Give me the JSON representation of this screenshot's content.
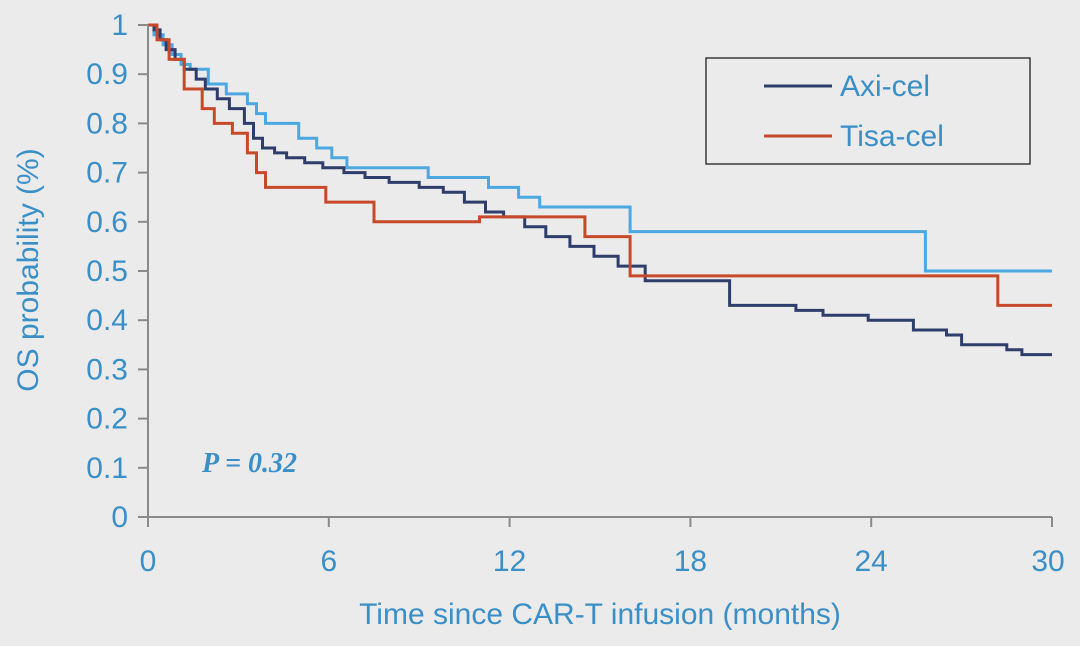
{
  "chart_data": {
    "type": "line",
    "step": true,
    "xlabel": "Time since CAR-T infusion (months)",
    "ylabel": "OS probability (%)",
    "xlim": [
      0,
      30
    ],
    "ylim": [
      0,
      1
    ],
    "xticks": [
      0,
      6,
      12,
      18,
      24,
      30
    ],
    "yticks": [
      0,
      0.1,
      0.2,
      0.3,
      0.4,
      0.5,
      0.6,
      0.7,
      0.8,
      0.9,
      1
    ],
    "ytick_labels": [
      "0",
      "0.1",
      "0.2",
      "0.3",
      "0.4",
      "0.5",
      "0.6",
      "0.7",
      "0.8",
      "0.9",
      "1"
    ],
    "grid": false,
    "legend_position": "top-right",
    "annotation": "P = 0.32",
    "colors": {
      "axis_text": "#3a8fc7",
      "axis_line": "#8a8a8a",
      "background": "#ebebeb",
      "legend_border": "#3a3a3a",
      "legend_text": "#3a8fc7"
    },
    "series": [
      {
        "name": "",
        "color": "#4ba8e0",
        "x": [
          0,
          0.2,
          0.5,
          0.8,
          1.1,
          1.4,
          2.0,
          2.6,
          3.3,
          3.6,
          3.9,
          5.0,
          5.6,
          6.1,
          6.6,
          9.3,
          11.3,
          12.3,
          13.0,
          16.0,
          25.8,
          30
        ],
        "y": [
          1.0,
          0.98,
          0.96,
          0.94,
          0.92,
          0.91,
          0.88,
          0.86,
          0.84,
          0.82,
          0.8,
          0.77,
          0.75,
          0.73,
          0.71,
          0.69,
          0.67,
          0.65,
          0.63,
          0.58,
          0.5,
          0.5
        ]
      },
      {
        "name": "Axi-cel",
        "color": "#2e3d6b",
        "x": [
          0,
          0.2,
          0.4,
          0.6,
          0.9,
          1.2,
          1.6,
          1.9,
          2.3,
          2.7,
          3.2,
          3.5,
          3.8,
          4.2,
          4.6,
          5.2,
          5.8,
          6.5,
          7.2,
          8.0,
          9.0,
          9.8,
          10.5,
          11.2,
          11.8,
          12.5,
          13.2,
          14.0,
          14.8,
          15.6,
          16.5,
          19.3,
          21.5,
          22.4,
          23.9,
          25.4,
          26.5,
          27.0,
          28.5,
          29.0,
          30
        ],
        "y": [
          1.0,
          0.99,
          0.97,
          0.95,
          0.93,
          0.91,
          0.89,
          0.87,
          0.85,
          0.83,
          0.8,
          0.77,
          0.75,
          0.74,
          0.73,
          0.72,
          0.71,
          0.7,
          0.69,
          0.68,
          0.67,
          0.66,
          0.64,
          0.62,
          0.61,
          0.59,
          0.57,
          0.55,
          0.53,
          0.51,
          0.48,
          0.43,
          0.42,
          0.41,
          0.4,
          0.38,
          0.37,
          0.35,
          0.34,
          0.33,
          0.33
        ]
      },
      {
        "name": "Tisa-cel",
        "color": "#c8492a",
        "x": [
          0,
          0.3,
          0.7,
          1.2,
          1.8,
          2.2,
          2.8,
          3.3,
          3.6,
          3.9,
          5.9,
          7.5,
          11.0,
          14.5,
          16.0,
          28.2,
          30
        ],
        "y": [
          1.0,
          0.97,
          0.93,
          0.87,
          0.83,
          0.8,
          0.78,
          0.74,
          0.7,
          0.67,
          0.64,
          0.6,
          0.61,
          0.57,
          0.49,
          0.43,
          0.43
        ]
      }
    ]
  }
}
